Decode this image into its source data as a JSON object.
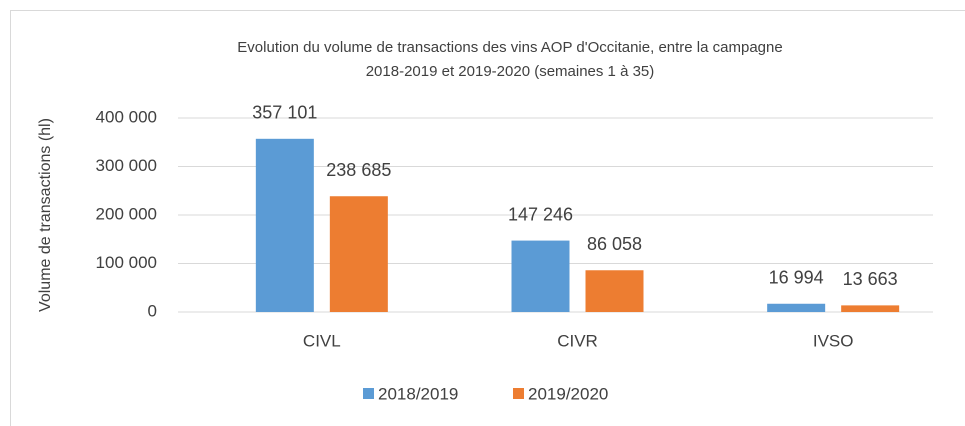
{
  "chart_data": {
    "type": "bar",
    "title": [
      "Evolution du volume de transactions des vins AOP d'Occitanie, entre la campagne",
      "2018-2019 et 2019-2020 (semaines 1 à 35)"
    ],
    "y_label": "Volume de transactions (hl)",
    "categories": [
      "CIVL",
      "CIVR",
      "IVSO"
    ],
    "series": [
      {
        "name": "2018/2019",
        "color": "#5b9bd5",
        "values": [
          357101,
          147246,
          16994
        ],
        "value_labels": [
          "357 101",
          "147 246",
          "16 994"
        ]
      },
      {
        "name": "2019/2020",
        "color": "#ed7d31",
        "values": [
          238685,
          86058,
          13663
        ],
        "value_labels": [
          "238 685",
          "86 058",
          "13 663"
        ]
      }
    ],
    "ylim": [
      0,
      400000
    ],
    "yticks": [
      0,
      {
        "value": 100000,
        "label": "100 000"
      },
      {
        "value": 200000,
        "label": "200 000"
      },
      {
        "value": 300000,
        "label": "300 000"
      },
      {
        "value": 400000,
        "label": "400 000"
      }
    ],
    "grid": true,
    "legend": "bottom"
  }
}
